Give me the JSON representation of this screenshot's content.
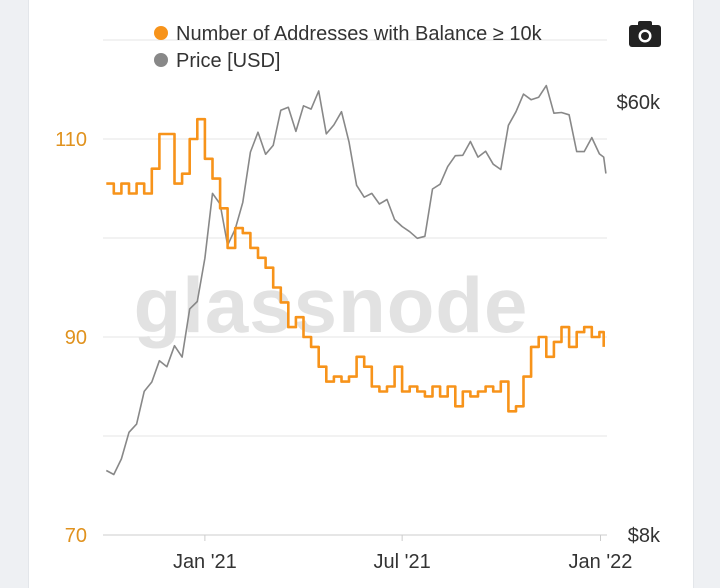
{
  "colors": {
    "addresses": "#f7931a",
    "price": "#888888",
    "grid": "#e6e6e6",
    "left_axis": "#e0921e"
  },
  "watermark": "glassnode",
  "icons": {
    "export": "camera-icon"
  },
  "chart_data": {
    "type": "line",
    "legend": [
      "Number of Addresses with Balance ≥ 10k",
      "Price [USD]"
    ],
    "legend_placement": "top-left",
    "x_range": [
      "2020-09-28",
      "2022-01-06"
    ],
    "x_ticks": [
      {
        "date": "2020-12-31",
        "label": "Jan '21"
      },
      {
        "date": "2021-07-01",
        "label": "Jul '21"
      },
      {
        "date": "2021-12-31",
        "label": "Jan '22"
      }
    ],
    "left_axis": {
      "ylim": [
        70,
        120
      ],
      "ticks": [
        70,
        90,
        110
      ]
    },
    "right_axis": {
      "scale": "log",
      "ylim": [
        8000,
        80000
      ],
      "tick_values": [
        8000,
        60000
      ],
      "tick_labels": [
        "$8k",
        "$60k"
      ]
    },
    "grid": true,
    "series": [
      {
        "name": "Number of Addresses with Balance ≥ 10k",
        "axis": "left",
        "points": [
          [
            "2020-10-01",
            105.5
          ],
          [
            "2020-10-08",
            104.5
          ],
          [
            "2020-10-15",
            105.5
          ],
          [
            "2020-10-22",
            104.5
          ],
          [
            "2020-10-29",
            105.5
          ],
          [
            "2020-11-05",
            104.5
          ],
          [
            "2020-11-12",
            107
          ],
          [
            "2020-11-19",
            110.5
          ],
          [
            "2020-11-26",
            110.5
          ],
          [
            "2020-12-03",
            105.5
          ],
          [
            "2020-12-10",
            106.5
          ],
          [
            "2020-12-17",
            110
          ],
          [
            "2020-12-24",
            112
          ],
          [
            "2020-12-31",
            108
          ],
          [
            "2021-01-07",
            106
          ],
          [
            "2021-01-14",
            103
          ],
          [
            "2021-01-21",
            99
          ],
          [
            "2021-01-28",
            101
          ],
          [
            "2021-02-04",
            100.5
          ],
          [
            "2021-02-11",
            99
          ],
          [
            "2021-02-18",
            98
          ],
          [
            "2021-02-25",
            97
          ],
          [
            "2021-03-04",
            95
          ],
          [
            "2021-03-11",
            93.5
          ],
          [
            "2021-03-18",
            91
          ],
          [
            "2021-03-25",
            92
          ],
          [
            "2021-04-01",
            90
          ],
          [
            "2021-04-08",
            89
          ],
          [
            "2021-04-15",
            87
          ],
          [
            "2021-04-22",
            85.5
          ],
          [
            "2021-04-29",
            86
          ],
          [
            "2021-05-06",
            85.5
          ],
          [
            "2021-05-13",
            86
          ],
          [
            "2021-05-20",
            88
          ],
          [
            "2021-05-27",
            87
          ],
          [
            "2021-06-03",
            85
          ],
          [
            "2021-06-10",
            84.5
          ],
          [
            "2021-06-17",
            85
          ],
          [
            "2021-06-24",
            87
          ],
          [
            "2021-07-01",
            84.5
          ],
          [
            "2021-07-08",
            85
          ],
          [
            "2021-07-15",
            84.5
          ],
          [
            "2021-07-22",
            84
          ],
          [
            "2021-07-29",
            85
          ],
          [
            "2021-08-05",
            84
          ],
          [
            "2021-08-12",
            85
          ],
          [
            "2021-08-19",
            83
          ],
          [
            "2021-08-26",
            84.5
          ],
          [
            "2021-09-02",
            84
          ],
          [
            "2021-09-09",
            84.5
          ],
          [
            "2021-09-16",
            85
          ],
          [
            "2021-09-23",
            84.5
          ],
          [
            "2021-09-30",
            85.5
          ],
          [
            "2021-10-07",
            82.5
          ],
          [
            "2021-10-14",
            83
          ],
          [
            "2021-10-21",
            86
          ],
          [
            "2021-10-28",
            89
          ],
          [
            "2021-11-04",
            90
          ],
          [
            "2021-11-11",
            88
          ],
          [
            "2021-11-18",
            89.5
          ],
          [
            "2021-11-25",
            91
          ],
          [
            "2021-12-02",
            89
          ],
          [
            "2021-12-09",
            90.5
          ],
          [
            "2021-12-16",
            91
          ],
          [
            "2021-12-23",
            90
          ],
          [
            "2021-12-30",
            90.5
          ],
          [
            "2022-01-03",
            89
          ]
        ]
      },
      {
        "name": "Price [USD]",
        "axis": "right",
        "points": [
          [
            "2020-10-01",
            10800
          ],
          [
            "2020-10-08",
            10600
          ],
          [
            "2020-10-15",
            11400
          ],
          [
            "2020-10-22",
            12900
          ],
          [
            "2020-10-29",
            13400
          ],
          [
            "2020-11-05",
            15600
          ],
          [
            "2020-11-12",
            16300
          ],
          [
            "2020-11-19",
            18000
          ],
          [
            "2020-11-26",
            17500
          ],
          [
            "2020-12-03",
            19300
          ],
          [
            "2020-12-10",
            18300
          ],
          [
            "2020-12-17",
            22900
          ],
          [
            "2020-12-24",
            23700
          ],
          [
            "2020-12-31",
            29000
          ],
          [
            "2021-01-07",
            39200
          ],
          [
            "2021-01-14",
            37300
          ],
          [
            "2021-01-21",
            30800
          ],
          [
            "2021-01-28",
            33200
          ],
          [
            "2021-02-04",
            37600
          ],
          [
            "2021-02-11",
            47500
          ],
          [
            "2021-02-18",
            52100
          ],
          [
            "2021-02-25",
            47000
          ],
          [
            "2021-03-04",
            49000
          ],
          [
            "2021-03-11",
            57700
          ],
          [
            "2021-03-18",
            58500
          ],
          [
            "2021-03-25",
            52300
          ],
          [
            "2021-04-01",
            58900
          ],
          [
            "2021-04-08",
            58000
          ],
          [
            "2021-04-15",
            63100
          ],
          [
            "2021-04-22",
            51700
          ],
          [
            "2021-04-29",
            53900
          ],
          [
            "2021-05-06",
            57300
          ],
          [
            "2021-05-13",
            49800
          ],
          [
            "2021-05-20",
            40700
          ],
          [
            "2021-05-27",
            38500
          ],
          [
            "2021-06-03",
            39200
          ],
          [
            "2021-06-10",
            37300
          ],
          [
            "2021-06-17",
            38100
          ],
          [
            "2021-06-24",
            34700
          ],
          [
            "2021-07-01",
            33600
          ],
          [
            "2021-07-08",
            32800
          ],
          [
            "2021-07-15",
            31800
          ],
          [
            "2021-07-22",
            32100
          ],
          [
            "2021-07-29",
            40000
          ],
          [
            "2021-08-05",
            40900
          ],
          [
            "2021-08-12",
            44400
          ],
          [
            "2021-08-19",
            46700
          ],
          [
            "2021-08-26",
            46800
          ],
          [
            "2021-09-02",
            49900
          ],
          [
            "2021-09-09",
            46400
          ],
          [
            "2021-09-16",
            47700
          ],
          [
            "2021-09-23",
            44900
          ],
          [
            "2021-09-30",
            43800
          ],
          [
            "2021-10-07",
            53800
          ],
          [
            "2021-10-14",
            57300
          ],
          [
            "2021-10-21",
            62200
          ],
          [
            "2021-10-28",
            60600
          ],
          [
            "2021-11-04",
            61300
          ],
          [
            "2021-11-11",
            64700
          ],
          [
            "2021-11-18",
            56900
          ],
          [
            "2021-11-25",
            57100
          ],
          [
            "2021-12-02",
            56500
          ],
          [
            "2021-12-09",
            47600
          ],
          [
            "2021-12-16",
            47600
          ],
          [
            "2021-12-23",
            50800
          ],
          [
            "2021-12-30",
            47100
          ],
          [
            "2022-01-03",
            46400
          ],
          [
            "2022-01-05",
            43000
          ]
        ]
      }
    ]
  }
}
